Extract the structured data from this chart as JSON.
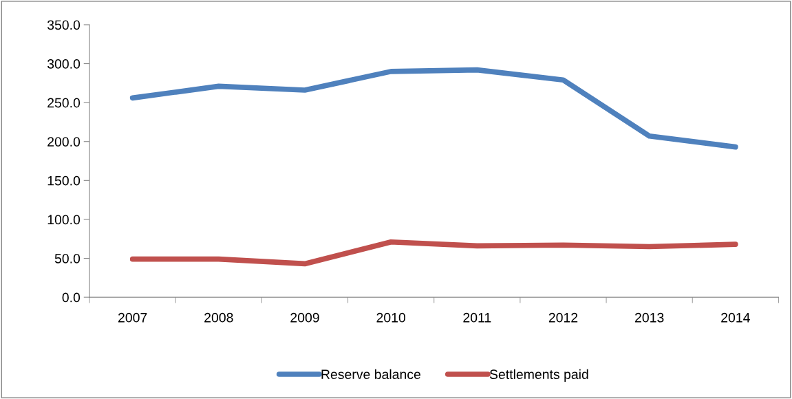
{
  "chart_data": {
    "type": "line",
    "categories": [
      "2007",
      "2008",
      "2009",
      "2010",
      "2011",
      "2012",
      "2013",
      "2014"
    ],
    "series": [
      {
        "name": "Reserve balance",
        "color": "#4f81bd",
        "values": [
          256,
          271,
          266,
          290,
          292,
          279,
          207,
          193
        ]
      },
      {
        "name": "Settlements paid",
        "color": "#c0504d",
        "values": [
          49,
          49,
          43,
          71,
          66,
          67,
          65,
          68
        ]
      }
    ],
    "ylim": [
      0,
      350
    ],
    "yticks": [
      {
        "value": 0,
        "label": "0.0"
      },
      {
        "value": 50,
        "label": "50.0"
      },
      {
        "value": 100,
        "label": "100.0"
      },
      {
        "value": 150,
        "label": "150.0"
      },
      {
        "value": 200,
        "label": "200.0"
      },
      {
        "value": 250,
        "label": "250.0"
      },
      {
        "value": 300,
        "label": "300.0"
      },
      {
        "value": 350,
        "label": "350.0"
      }
    ],
    "grid": false,
    "legend": "bottom",
    "marker": "none",
    "line_style": "solid"
  }
}
